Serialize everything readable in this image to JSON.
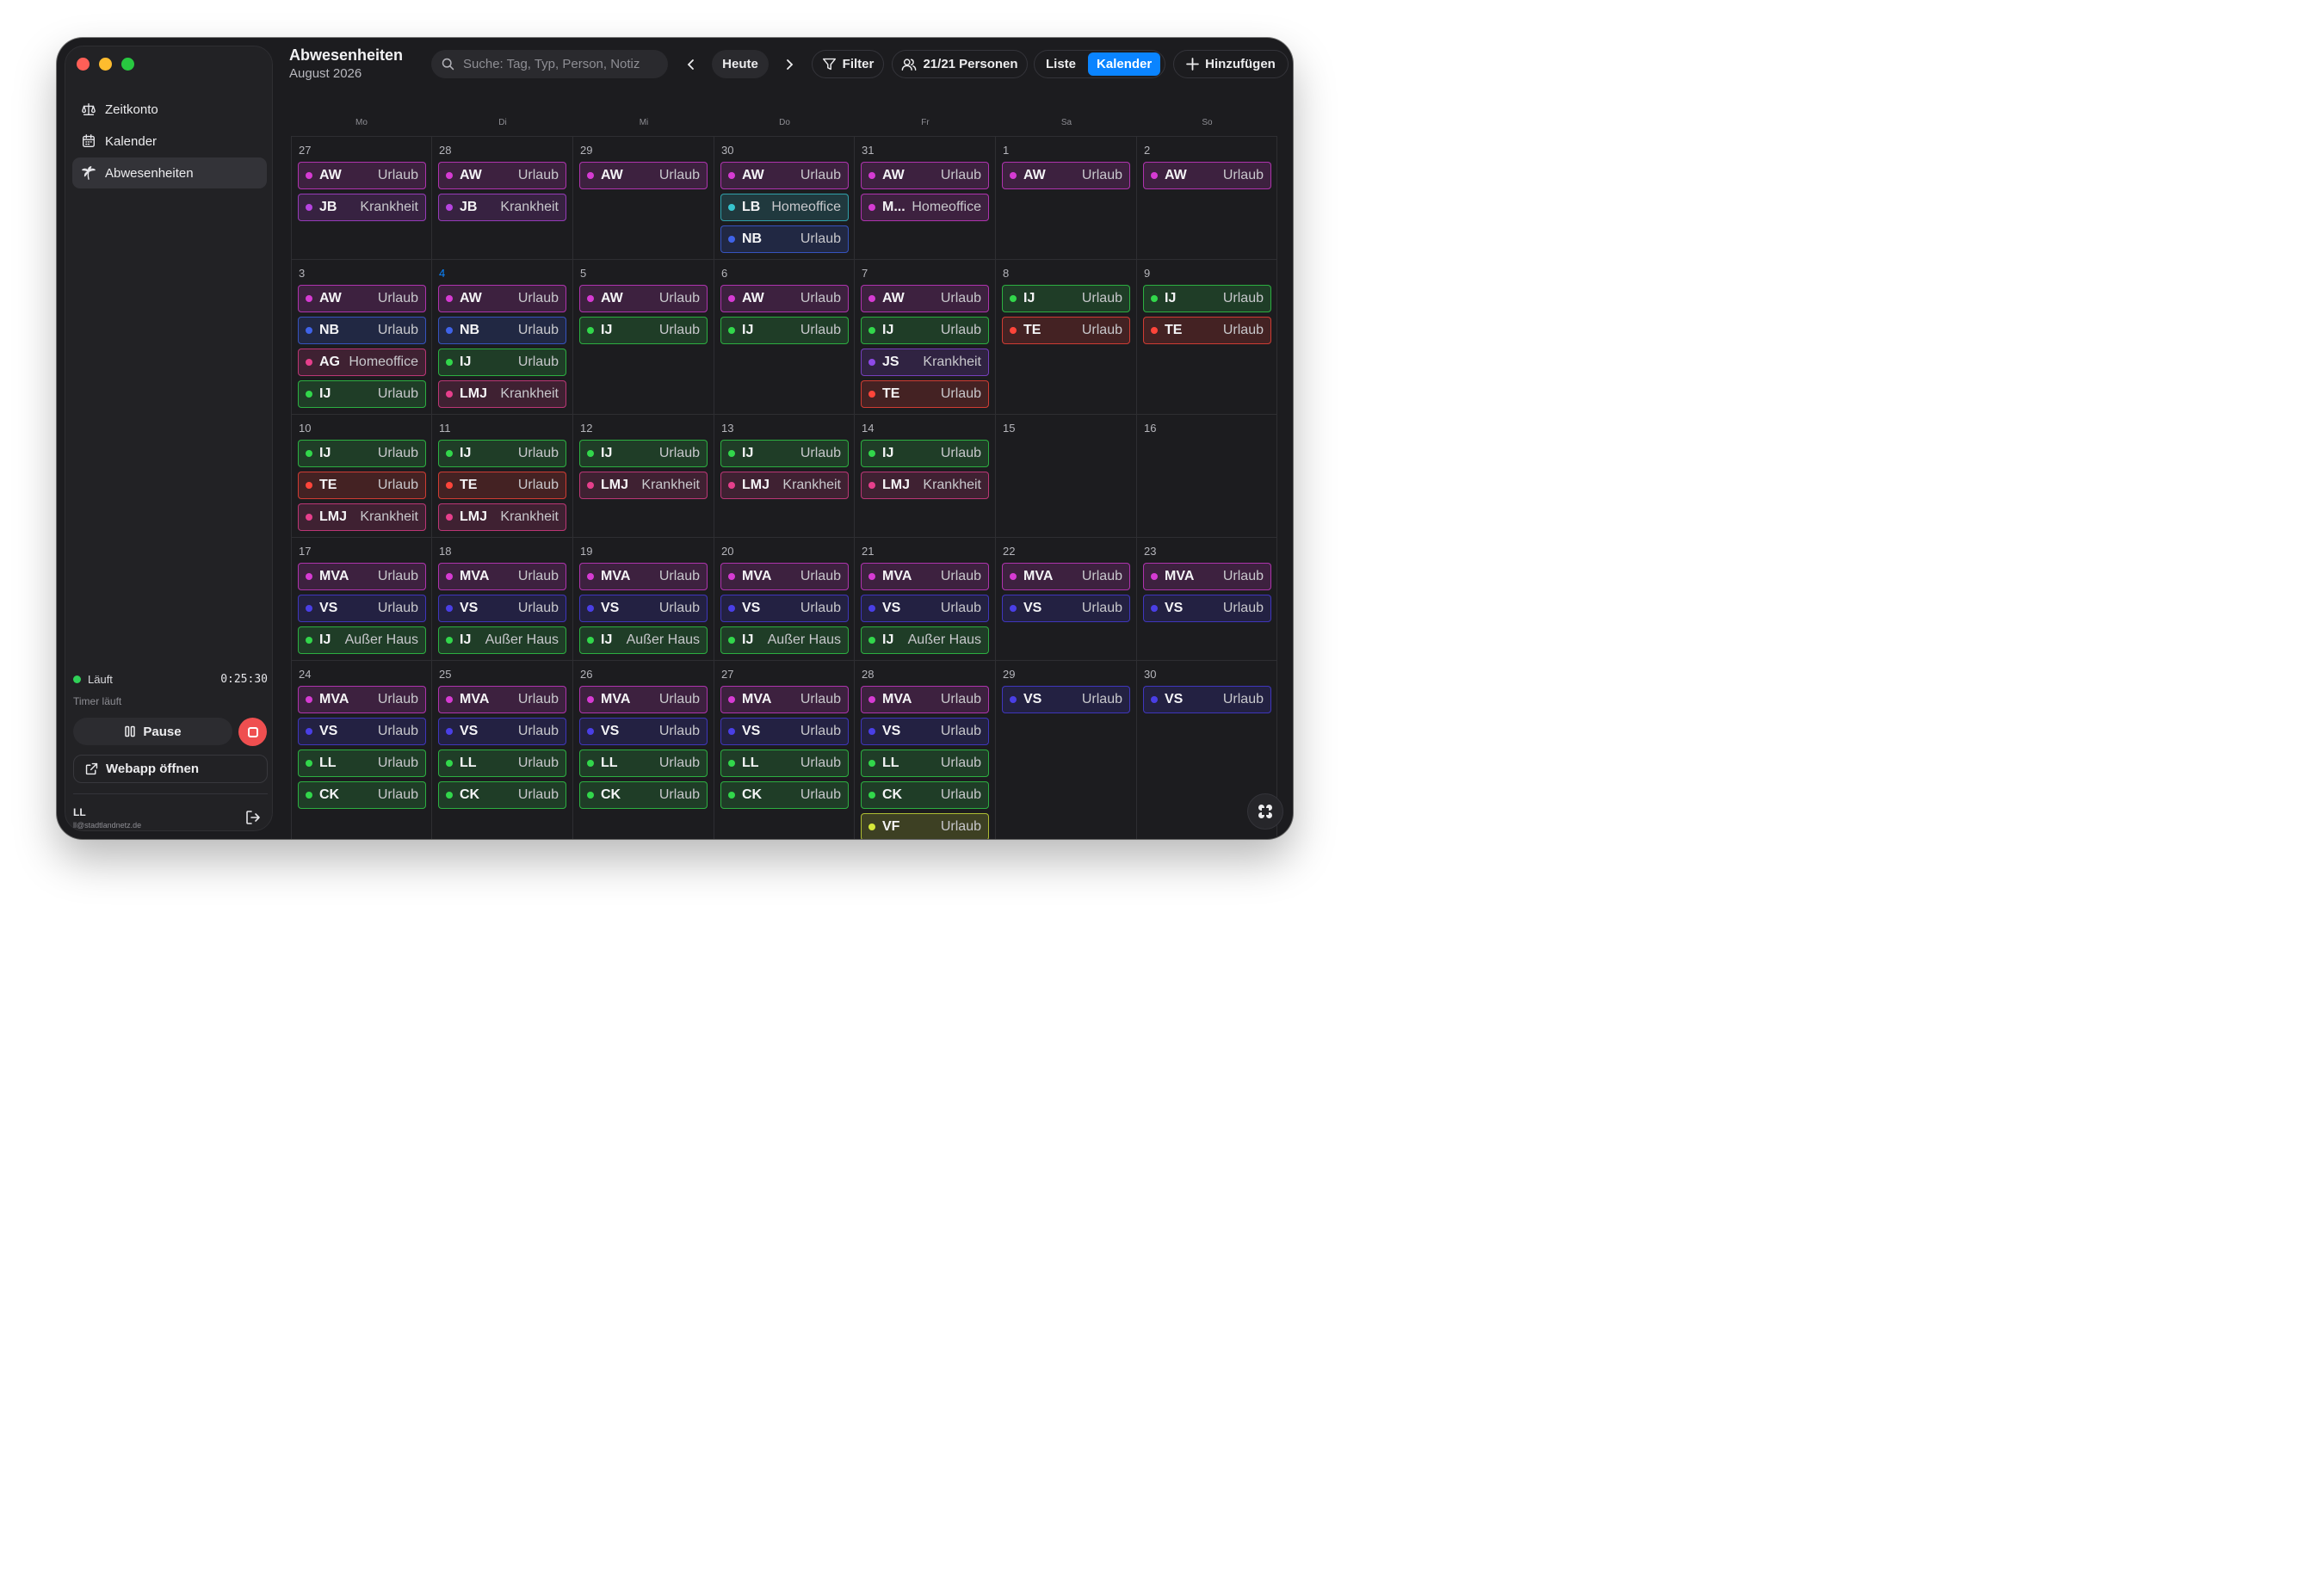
{
  "sidebar": {
    "items": [
      {
        "label": "Zeitkonto",
        "icon": "scale-icon"
      },
      {
        "label": "Kalender",
        "icon": "calendar-icon"
      },
      {
        "label": "Abwesenheiten",
        "icon": "palm-tree-icon"
      }
    ],
    "status_label": "Läuft",
    "timer_value": "0:25:30",
    "timer_sub": "Timer läuft",
    "pause_label": "Pause",
    "webapp_label": "Webapp öffnen",
    "user_initials": "LL",
    "user_email": "ll@stadtlandnetz.de"
  },
  "header": {
    "title": "Abwesenheiten",
    "subtitle": "August 2026",
    "search_placeholder": "Suche: Tag, Typ, Person, Notiz",
    "today_label": "Heute",
    "filter_label": "Filter",
    "persons_label": "21/21 Personen",
    "view_list": "Liste",
    "view_calendar": "Kalender",
    "add_label": "Hinzufügen"
  },
  "weekdays": [
    "Mo",
    "Di",
    "Mi",
    "Do",
    "Fr",
    "Sa",
    "So"
  ],
  "types": {
    "urlaub": "Urlaub",
    "krankheit": "Krankheit",
    "homeoffice": "Homeoffice",
    "ausser_haus": "Außer Haus"
  },
  "colors": {
    "accent": "#0a84ff",
    "magenta": "#d63bd3",
    "purple": "#b644e0",
    "pink": "#e63f8c",
    "teal": "#37c4cf",
    "blue": "#3f63e8",
    "indigo": "#4a3fe6",
    "green": "#32d74b",
    "red": "#ff453a",
    "violet": "#8e4ae6",
    "yellow": "#d6e83a"
  },
  "weeks": [
    [
      {
        "day": "27",
        "events": [
          {
            "who": "AW",
            "type": "Urlaub",
            "color": "magenta"
          },
          {
            "who": "JB",
            "type": "Krankheit",
            "color": "purple"
          }
        ]
      },
      {
        "day": "28",
        "events": [
          {
            "who": "AW",
            "type": "Urlaub",
            "color": "magenta"
          },
          {
            "who": "JB",
            "type": "Krankheit",
            "color": "purple"
          }
        ]
      },
      {
        "day": "29",
        "events": [
          {
            "who": "AW",
            "type": "Urlaub",
            "color": "magenta"
          }
        ]
      },
      {
        "day": "30",
        "events": [
          {
            "who": "AW",
            "type": "Urlaub",
            "color": "magenta"
          },
          {
            "who": "LB",
            "type": "Homeoffice",
            "color": "teal"
          },
          {
            "who": "NB",
            "type": "Urlaub",
            "color": "blue"
          }
        ]
      },
      {
        "day": "31",
        "events": [
          {
            "who": "AW",
            "type": "Urlaub",
            "color": "magenta"
          },
          {
            "who": "M...",
            "type": "Homeoffice",
            "color": "magenta"
          }
        ]
      },
      {
        "day": "1",
        "events": [
          {
            "who": "AW",
            "type": "Urlaub",
            "color": "magenta"
          }
        ]
      },
      {
        "day": "2",
        "events": [
          {
            "who": "AW",
            "type": "Urlaub",
            "color": "magenta"
          }
        ]
      }
    ],
    [
      {
        "day": "3",
        "events": [
          {
            "who": "AW",
            "type": "Urlaub",
            "color": "magenta"
          },
          {
            "who": "NB",
            "type": "Urlaub",
            "color": "blue"
          },
          {
            "who": "AG",
            "type": "Homeoffice",
            "color": "pink"
          },
          {
            "who": "IJ",
            "type": "Urlaub",
            "color": "green"
          }
        ]
      },
      {
        "day": "4",
        "today": true,
        "events": [
          {
            "who": "AW",
            "type": "Urlaub",
            "color": "magenta"
          },
          {
            "who": "NB",
            "type": "Urlaub",
            "color": "blue"
          },
          {
            "who": "IJ",
            "type": "Urlaub",
            "color": "green"
          },
          {
            "who": "LMJ",
            "type": "Krankheit",
            "color": "pink"
          }
        ]
      },
      {
        "day": "5",
        "events": [
          {
            "who": "AW",
            "type": "Urlaub",
            "color": "magenta"
          },
          {
            "who": "IJ",
            "type": "Urlaub",
            "color": "green"
          }
        ]
      },
      {
        "day": "6",
        "events": [
          {
            "who": "AW",
            "type": "Urlaub",
            "color": "magenta"
          },
          {
            "who": "IJ",
            "type": "Urlaub",
            "color": "green"
          }
        ]
      },
      {
        "day": "7",
        "events": [
          {
            "who": "AW",
            "type": "Urlaub",
            "color": "magenta"
          },
          {
            "who": "IJ",
            "type": "Urlaub",
            "color": "green"
          },
          {
            "who": "JS",
            "type": "Krankheit",
            "color": "violet"
          },
          {
            "who": "TE",
            "type": "Urlaub",
            "color": "red"
          }
        ]
      },
      {
        "day": "8",
        "events": [
          {
            "who": "IJ",
            "type": "Urlaub",
            "color": "green"
          },
          {
            "who": "TE",
            "type": "Urlaub",
            "color": "red"
          }
        ]
      },
      {
        "day": "9",
        "events": [
          {
            "who": "IJ",
            "type": "Urlaub",
            "color": "green"
          },
          {
            "who": "TE",
            "type": "Urlaub",
            "color": "red"
          }
        ]
      }
    ],
    [
      {
        "day": "10",
        "events": [
          {
            "who": "IJ",
            "type": "Urlaub",
            "color": "green"
          },
          {
            "who": "TE",
            "type": "Urlaub",
            "color": "red"
          },
          {
            "who": "LMJ",
            "type": "Krankheit",
            "color": "pink"
          }
        ]
      },
      {
        "day": "11",
        "events": [
          {
            "who": "IJ",
            "type": "Urlaub",
            "color": "green"
          },
          {
            "who": "TE",
            "type": "Urlaub",
            "color": "red"
          },
          {
            "who": "LMJ",
            "type": "Krankheit",
            "color": "pink"
          }
        ]
      },
      {
        "day": "12",
        "events": [
          {
            "who": "IJ",
            "type": "Urlaub",
            "color": "green"
          },
          {
            "who": "LMJ",
            "type": "Krankheit",
            "color": "pink"
          }
        ]
      },
      {
        "day": "13",
        "events": [
          {
            "who": "IJ",
            "type": "Urlaub",
            "color": "green"
          },
          {
            "who": "LMJ",
            "type": "Krankheit",
            "color": "pink"
          }
        ]
      },
      {
        "day": "14",
        "events": [
          {
            "who": "IJ",
            "type": "Urlaub",
            "color": "green"
          },
          {
            "who": "LMJ",
            "type": "Krankheit",
            "color": "pink"
          }
        ]
      },
      {
        "day": "15",
        "events": []
      },
      {
        "day": "16",
        "events": []
      }
    ],
    [
      {
        "day": "17",
        "events": [
          {
            "who": "MVA",
            "type": "Urlaub",
            "color": "magenta"
          },
          {
            "who": "VS",
            "type": "Urlaub",
            "color": "indigo"
          },
          {
            "who": "IJ",
            "type": "Außer Haus",
            "color": "green"
          }
        ]
      },
      {
        "day": "18",
        "events": [
          {
            "who": "MVA",
            "type": "Urlaub",
            "color": "magenta"
          },
          {
            "who": "VS",
            "type": "Urlaub",
            "color": "indigo"
          },
          {
            "who": "IJ",
            "type": "Außer Haus",
            "color": "green"
          }
        ]
      },
      {
        "day": "19",
        "events": [
          {
            "who": "MVA",
            "type": "Urlaub",
            "color": "magenta"
          },
          {
            "who": "VS",
            "type": "Urlaub",
            "color": "indigo"
          },
          {
            "who": "IJ",
            "type": "Außer Haus",
            "color": "green"
          }
        ]
      },
      {
        "day": "20",
        "events": [
          {
            "who": "MVA",
            "type": "Urlaub",
            "color": "magenta"
          },
          {
            "who": "VS",
            "type": "Urlaub",
            "color": "indigo"
          },
          {
            "who": "IJ",
            "type": "Außer Haus",
            "color": "green"
          }
        ]
      },
      {
        "day": "21",
        "events": [
          {
            "who": "MVA",
            "type": "Urlaub",
            "color": "magenta"
          },
          {
            "who": "VS",
            "type": "Urlaub",
            "color": "indigo"
          },
          {
            "who": "IJ",
            "type": "Außer Haus",
            "color": "green"
          }
        ]
      },
      {
        "day": "22",
        "events": [
          {
            "who": "MVA",
            "type": "Urlaub",
            "color": "magenta"
          },
          {
            "who": "VS",
            "type": "Urlaub",
            "color": "indigo"
          }
        ]
      },
      {
        "day": "23",
        "events": [
          {
            "who": "MVA",
            "type": "Urlaub",
            "color": "magenta"
          },
          {
            "who": "VS",
            "type": "Urlaub",
            "color": "indigo"
          }
        ]
      }
    ],
    [
      {
        "day": "24",
        "events": [
          {
            "who": "MVA",
            "type": "Urlaub",
            "color": "magenta"
          },
          {
            "who": "VS",
            "type": "Urlaub",
            "color": "indigo"
          },
          {
            "who": "LL",
            "type": "Urlaub",
            "color": "green"
          },
          {
            "who": "CK",
            "type": "Urlaub",
            "color": "green"
          }
        ]
      },
      {
        "day": "25",
        "events": [
          {
            "who": "MVA",
            "type": "Urlaub",
            "color": "magenta"
          },
          {
            "who": "VS",
            "type": "Urlaub",
            "color": "indigo"
          },
          {
            "who": "LL",
            "type": "Urlaub",
            "color": "green"
          },
          {
            "who": "CK",
            "type": "Urlaub",
            "color": "green"
          }
        ]
      },
      {
        "day": "26",
        "events": [
          {
            "who": "MVA",
            "type": "Urlaub",
            "color": "magenta"
          },
          {
            "who": "VS",
            "type": "Urlaub",
            "color": "indigo"
          },
          {
            "who": "LL",
            "type": "Urlaub",
            "color": "green"
          },
          {
            "who": "CK",
            "type": "Urlaub",
            "color": "green"
          }
        ]
      },
      {
        "day": "27",
        "events": [
          {
            "who": "MVA",
            "type": "Urlaub",
            "color": "magenta"
          },
          {
            "who": "VS",
            "type": "Urlaub",
            "color": "indigo"
          },
          {
            "who": "LL",
            "type": "Urlaub",
            "color": "green"
          },
          {
            "who": "CK",
            "type": "Urlaub",
            "color": "green"
          }
        ]
      },
      {
        "day": "28",
        "events": [
          {
            "who": "MVA",
            "type": "Urlaub",
            "color": "magenta"
          },
          {
            "who": "VS",
            "type": "Urlaub",
            "color": "indigo"
          },
          {
            "who": "LL",
            "type": "Urlaub",
            "color": "green"
          },
          {
            "who": "CK",
            "type": "Urlaub",
            "color": "green"
          },
          {
            "who": "VF",
            "type": "Urlaub",
            "color": "yellow"
          }
        ]
      },
      {
        "day": "29",
        "events": [
          {
            "who": "VS",
            "type": "Urlaub",
            "color": "indigo"
          }
        ]
      },
      {
        "day": "30",
        "events": [
          {
            "who": "VS",
            "type": "Urlaub",
            "color": "indigo"
          }
        ]
      }
    ]
  ]
}
